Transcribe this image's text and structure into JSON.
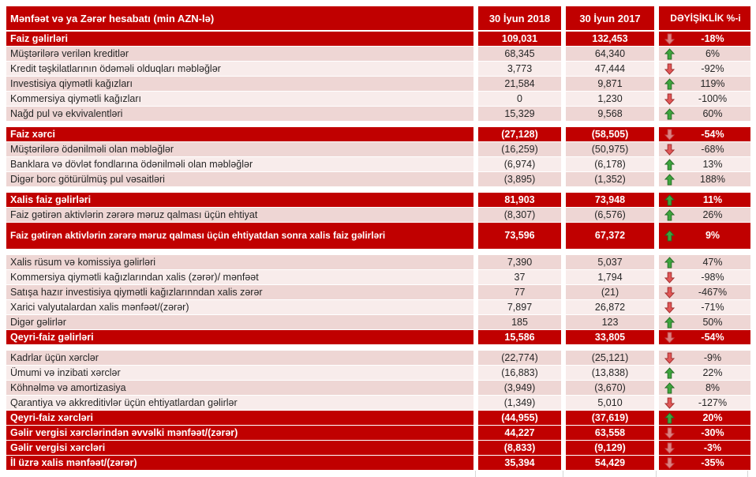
{
  "colors": {
    "accent_red": "#C00000",
    "band_pink_dark": "#EED6D4",
    "band_pink_light": "#F8ECEB",
    "item_text": "#262626",
    "up_arrow_green": "#3EA53E",
    "down_arrow_red": "#E15757"
  },
  "table": {
    "header": {
      "label": "Mənfəət və ya Zərər hesabatı  (min AZN-lə)",
      "col2018": "30 İyun 2018",
      "col2017": "30 İyun 2017",
      "colChange": "DƏYİŞİKLİK %-i"
    },
    "rows": [
      {
        "type": "section",
        "label": "Faiz gəlirləri",
        "v2018": "109,031",
        "v2017": "132,453",
        "dir": "down",
        "change": "-18%"
      },
      {
        "type": "item",
        "shade": "dark",
        "label": "Müştərilərə verilən kreditlər",
        "v2018": "68,345",
        "v2017": "64,340",
        "dir": "up",
        "change": "6%"
      },
      {
        "type": "item",
        "shade": "light",
        "label": "Kredit təşkilatlarının ödəməli olduqları məbləğlər",
        "v2018": "3,773",
        "v2017": "47,444",
        "dir": "down",
        "change": "-92%"
      },
      {
        "type": "item",
        "shade": "dark",
        "label": "Investisiya qiymətli kağızları",
        "v2018": "21,584",
        "v2017": "9,871",
        "dir": "up",
        "change": "119%"
      },
      {
        "type": "item",
        "shade": "light",
        "label": "Kommersiya qiymətli kağızları",
        "v2018": "0",
        "v2017": "1,230",
        "dir": "down",
        "change": "-100%"
      },
      {
        "type": "item",
        "shade": "dark",
        "label": "Nağd pul və ekvivalentləri",
        "v2018": "15,329",
        "v2017": "9,568",
        "dir": "up",
        "change": "60%"
      },
      {
        "type": "gap"
      },
      {
        "type": "section",
        "label": "Faiz xərci",
        "v2018": "(27,128)",
        "v2017": "(58,505)",
        "dir": "down",
        "change": "-54%"
      },
      {
        "type": "item",
        "shade": "dark",
        "label": "Müştərilərə ödənilməli olan məbləğlər",
        "v2018": "(16,259)",
        "v2017": "(50,975)",
        "dir": "down",
        "change": "-68%"
      },
      {
        "type": "item",
        "shade": "light",
        "label": "Banklara və dövlət fondlarına ödənilməli olan məbləğlər",
        "v2018": "(6,974)",
        "v2017": "(6,178)",
        "dir": "up",
        "change": "13%"
      },
      {
        "type": "item",
        "shade": "dark",
        "label": "Digər borc götürülmüş pul vəsaitləri",
        "v2018": "(3,895)",
        "v2017": "(1,352)",
        "dir": "up",
        "change": "188%"
      },
      {
        "type": "gap"
      },
      {
        "type": "section",
        "label": "Xalis faiz gəlirləri",
        "v2018": "81,903",
        "v2017": "73,948",
        "dir": "up",
        "change": "11%"
      },
      {
        "type": "item",
        "shade": "dark",
        "label": "Faiz gətirən aktivlərin zərərə məruz qalması üçün ehtiyat",
        "v2018": "(8,307)",
        "v2017": "(6,576)",
        "dir": "up",
        "change": "26%"
      },
      {
        "type": "section-tall",
        "label": "Faiz gətirən aktivlərin zərərə məruz qalması üçün ehtiyatdan sonra xalis faiz gəlirləri",
        "v2018": "73,596",
        "v2017": "67,372",
        "dir": "up",
        "change": "9%"
      },
      {
        "type": "gap"
      },
      {
        "type": "item",
        "shade": "dark",
        "label": "Xalis rüsum və komissiya gəlirləri",
        "v2018": "7,390",
        "v2017": "5,037",
        "dir": "up",
        "change": "47%"
      },
      {
        "type": "item",
        "shade": "light",
        "label": "Kommersiya qiymətli kağızlarından xalis (zərər)/ mənfəət",
        "v2018": "37",
        "v2017": "1,794",
        "dir": "down",
        "change": "-98%"
      },
      {
        "type": "item",
        "shade": "dark",
        "label": "Satışa hazır investisiya qiymətli kağızlarınndan xalis zərər",
        "v2018": "77",
        "v2017": "(21)",
        "dir": "down",
        "change": "-467%"
      },
      {
        "type": "item",
        "shade": "light",
        "label": "Xarici valyutalardan xalis mənfəət/(zərər)",
        "v2018": "7,897",
        "v2017": "26,872",
        "dir": "down",
        "change": "-71%"
      },
      {
        "type": "item",
        "shade": "dark",
        "label": "Digər gəlirlər",
        "v2018": "185",
        "v2017": "123",
        "dir": "up",
        "change": "50%"
      },
      {
        "type": "section",
        "label": "Qeyri-faiz gəlirləri",
        "v2018": "15,586",
        "v2017": "33,805",
        "dir": "down",
        "change": "-54%"
      },
      {
        "type": "gap"
      },
      {
        "type": "item",
        "shade": "dark",
        "label": "Kadrlar üçün xərclər",
        "v2018": "(22,774)",
        "v2017": "(25,121)",
        "dir": "down",
        "change": "-9%"
      },
      {
        "type": "item",
        "shade": "light",
        "label": "Ümumi və inzibati xərclər",
        "v2018": "(16,883)",
        "v2017": "(13,838)",
        "dir": "up",
        "change": "22%"
      },
      {
        "type": "item",
        "shade": "dark",
        "label": "Köhnəlmə və amortizasiya",
        "v2018": "(3,949)",
        "v2017": "(3,670)",
        "dir": "up",
        "change": "8%"
      },
      {
        "type": "item",
        "shade": "light",
        "label": "Qarantiya və akkreditivlər üçün ehtiyatlardan gəlirlər",
        "v2018": "(1,349)",
        "v2017": "5,010",
        "dir": "down",
        "change": "-127%"
      },
      {
        "type": "section",
        "label": "Qeyri-faiz xərcləri",
        "v2018": "(44,955)",
        "v2017": "(37,619)",
        "dir": "up",
        "change": "20%"
      },
      {
        "type": "section",
        "label": "Gəlir vergisi xərclərindən əvvəlki mənfəət/(zərər)",
        "v2018": "44,227",
        "v2017": "63,558",
        "dir": "down",
        "change": "-30%"
      },
      {
        "type": "section",
        "label": "Gəlir vergisi xərcləri",
        "v2018": "(8,833)",
        "v2017": "(9,129)",
        "dir": "down",
        "change": "-3%"
      },
      {
        "type": "section",
        "label": "İl üzrə xalis mənfəət/(zərər)",
        "v2018": "35,394",
        "v2017": "54,429",
        "dir": "down",
        "change": "-35%"
      }
    ]
  }
}
